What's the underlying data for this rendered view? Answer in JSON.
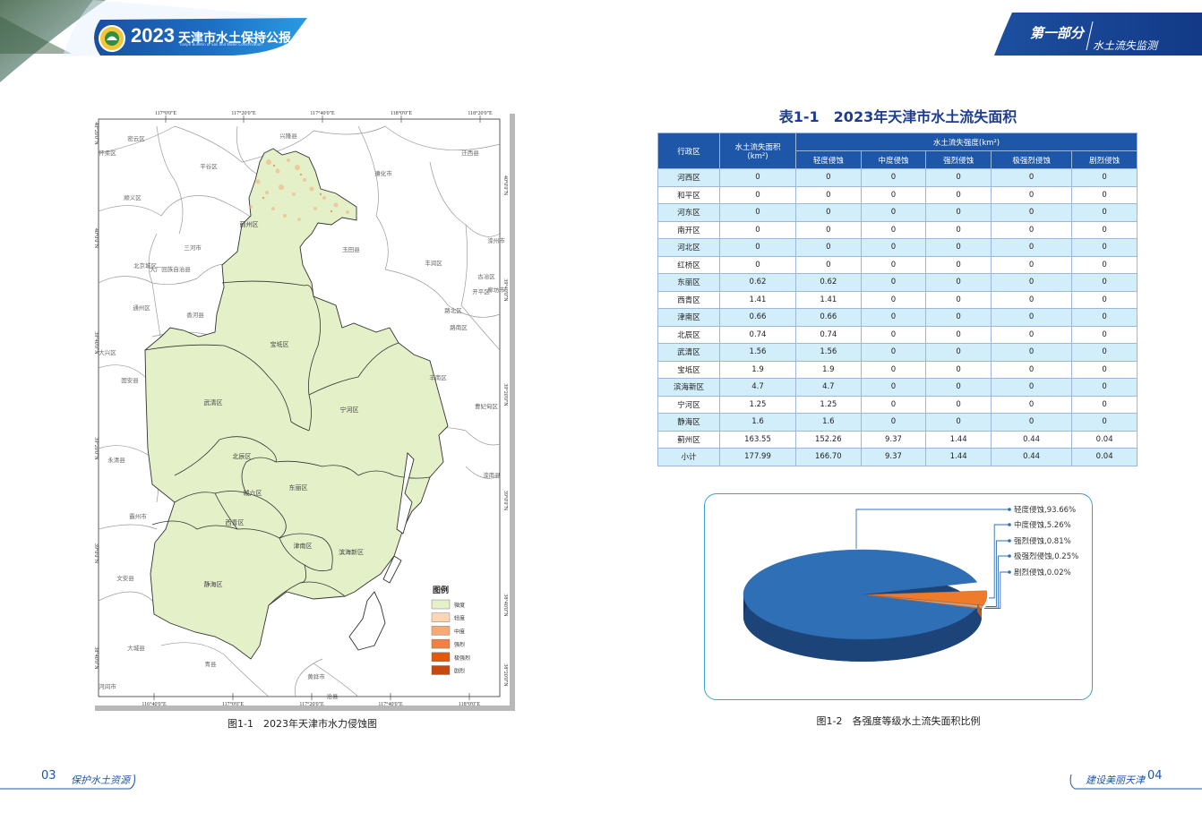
{
  "header": {
    "year": "2023",
    "title_cn": "天津市水土保持公报",
    "title_en": "Tianjin Bulletin of Soil and Water Conservation",
    "part": "第一部分",
    "section": "水土流失监测"
  },
  "map": {
    "caption": "图1-1　2023年天津市水力侵蚀图",
    "top_lon_ticks": [
      "117°0'0\"E",
      "117°20'0\"E",
      "117°40'0\"E",
      "118°0'0\"E",
      "118°20'0\"E"
    ],
    "bottom_lon_ticks": [
      "116°40'0\"E",
      "117°0'0\"E",
      "117°20'0\"E",
      "117°40'0\"E",
      "118°0'0\"E"
    ],
    "left_lat_ticks": [
      "40°20'0\"N",
      "40°0'0\"N",
      "39°40'0\"N",
      "39°20'0\"N",
      "39°0'0\"N",
      "38°40'0\"N"
    ],
    "right_lat_ticks": [
      "40°0'0\"N",
      "39°40'0\"N",
      "39°20'0\"N",
      "39°0'0\"N",
      "38°40'0\"N",
      "38°20'0\"N"
    ],
    "tianjin_districts": [
      "蓟州区",
      "宝坻区",
      "武清区",
      "宁河区",
      "北辰区",
      "东丽区",
      "城六区",
      "西青区",
      "津南区",
      "静海区",
      "滨海新区"
    ],
    "outer_labels": [
      "密云区",
      "兴隆县",
      "迁西县",
      "怀柔区",
      "平谷区",
      "遵化市",
      "顺义区",
      "三河市",
      "玉田县",
      "丰润区",
      "滦州市",
      "北京城区",
      "廊坊市",
      "古冶区",
      "开平区",
      "大厂回族自治县",
      "通州区",
      "香河县",
      "路北区",
      "路南区",
      "大兴区",
      "丰南区",
      "固安县",
      "永清县",
      "霸州市",
      "文安县",
      "大城县",
      "青县",
      "黄骅市",
      "沧县",
      "河间市",
      "曹妃甸区",
      "滦南县"
    ],
    "legend": {
      "title": "图例",
      "items": [
        {
          "label": "微度",
          "color": "#e3f0c8"
        },
        {
          "label": "轻度",
          "color": "#fbd5b4"
        },
        {
          "label": "中度",
          "color": "#f6aa78"
        },
        {
          "label": "强烈",
          "color": "#f28044"
        },
        {
          "label": "极强烈",
          "color": "#e15a0c"
        },
        {
          "label": "剧烈",
          "color": "#c5480c"
        }
      ]
    }
  },
  "table": {
    "title": "表1-1　2023年天津市水土流失面积",
    "col_region": "行政区",
    "col_area": "水土流失面积",
    "col_area_unit": "(km²)",
    "col_intensity": "水土流失强度(km²)",
    "intensity_cols": [
      "轻度侵蚀",
      "中度侵蚀",
      "强烈侵蚀",
      "极强烈侵蚀",
      "剧烈侵蚀"
    ],
    "rows": [
      [
        "河西区",
        "0",
        "0",
        "0",
        "0",
        "0",
        "0"
      ],
      [
        "和平区",
        "0",
        "0",
        "0",
        "0",
        "0",
        "0"
      ],
      [
        "河东区",
        "0",
        "0",
        "0",
        "0",
        "0",
        "0"
      ],
      [
        "南开区",
        "0",
        "0",
        "0",
        "0",
        "0",
        "0"
      ],
      [
        "河北区",
        "0",
        "0",
        "0",
        "0",
        "0",
        "0"
      ],
      [
        "红桥区",
        "0",
        "0",
        "0",
        "0",
        "0",
        "0"
      ],
      [
        "东丽区",
        "0.62",
        "0.62",
        "0",
        "0",
        "0",
        "0"
      ],
      [
        "西青区",
        "1.41",
        "1.41",
        "0",
        "0",
        "0",
        "0"
      ],
      [
        "津南区",
        "0.66",
        "0.66",
        "0",
        "0",
        "0",
        "0"
      ],
      [
        "北辰区",
        "0.74",
        "0.74",
        "0",
        "0",
        "0",
        "0"
      ],
      [
        "武清区",
        "1.56",
        "1.56",
        "0",
        "0",
        "0",
        "0"
      ],
      [
        "宝坻区",
        "1.9",
        "1.9",
        "0",
        "0",
        "0",
        "0"
      ],
      [
        "滨海新区",
        "4.7",
        "4.7",
        "0",
        "0",
        "0",
        "0"
      ],
      [
        "宁河区",
        "1.25",
        "1.25",
        "0",
        "0",
        "0",
        "0"
      ],
      [
        "静海区",
        "1.6",
        "1.6",
        "0",
        "0",
        "0",
        "0"
      ],
      [
        "蓟州区",
        "163.55",
        "152.26",
        "9.37",
        "1.44",
        "0.44",
        "0.04"
      ],
      [
        "小计",
        "177.99",
        "166.70",
        "9.37",
        "1.44",
        "0.44",
        "0.04"
      ]
    ]
  },
  "pie": {
    "caption": "图1-2　各强度等级水土流失面积比例",
    "chart_data": {
      "type": "pie",
      "categories": [
        "轻度侵蚀",
        "中度侵蚀",
        "强烈侵蚀",
        "极强烈侵蚀",
        "剧烈侵蚀"
      ],
      "values": [
        93.66,
        5.26,
        0.81,
        0.25,
        0.02
      ],
      "labels": [
        "轻度侵蚀,93.66%",
        "中度侵蚀,5.26%",
        "强烈侵蚀,0.81%",
        "极强烈侵蚀,0.25%",
        "剧烈侵蚀,0.02%"
      ],
      "colors": [
        "#2e6fb5",
        "#ef7a2a",
        "#c9b08d",
        "#d0d0d0",
        "#d9e86a"
      ],
      "legend": "right"
    }
  },
  "footer": {
    "left_page": "03",
    "left_text": "保护水土资源",
    "right_text": "建设美丽天津",
    "right_page": "04"
  }
}
